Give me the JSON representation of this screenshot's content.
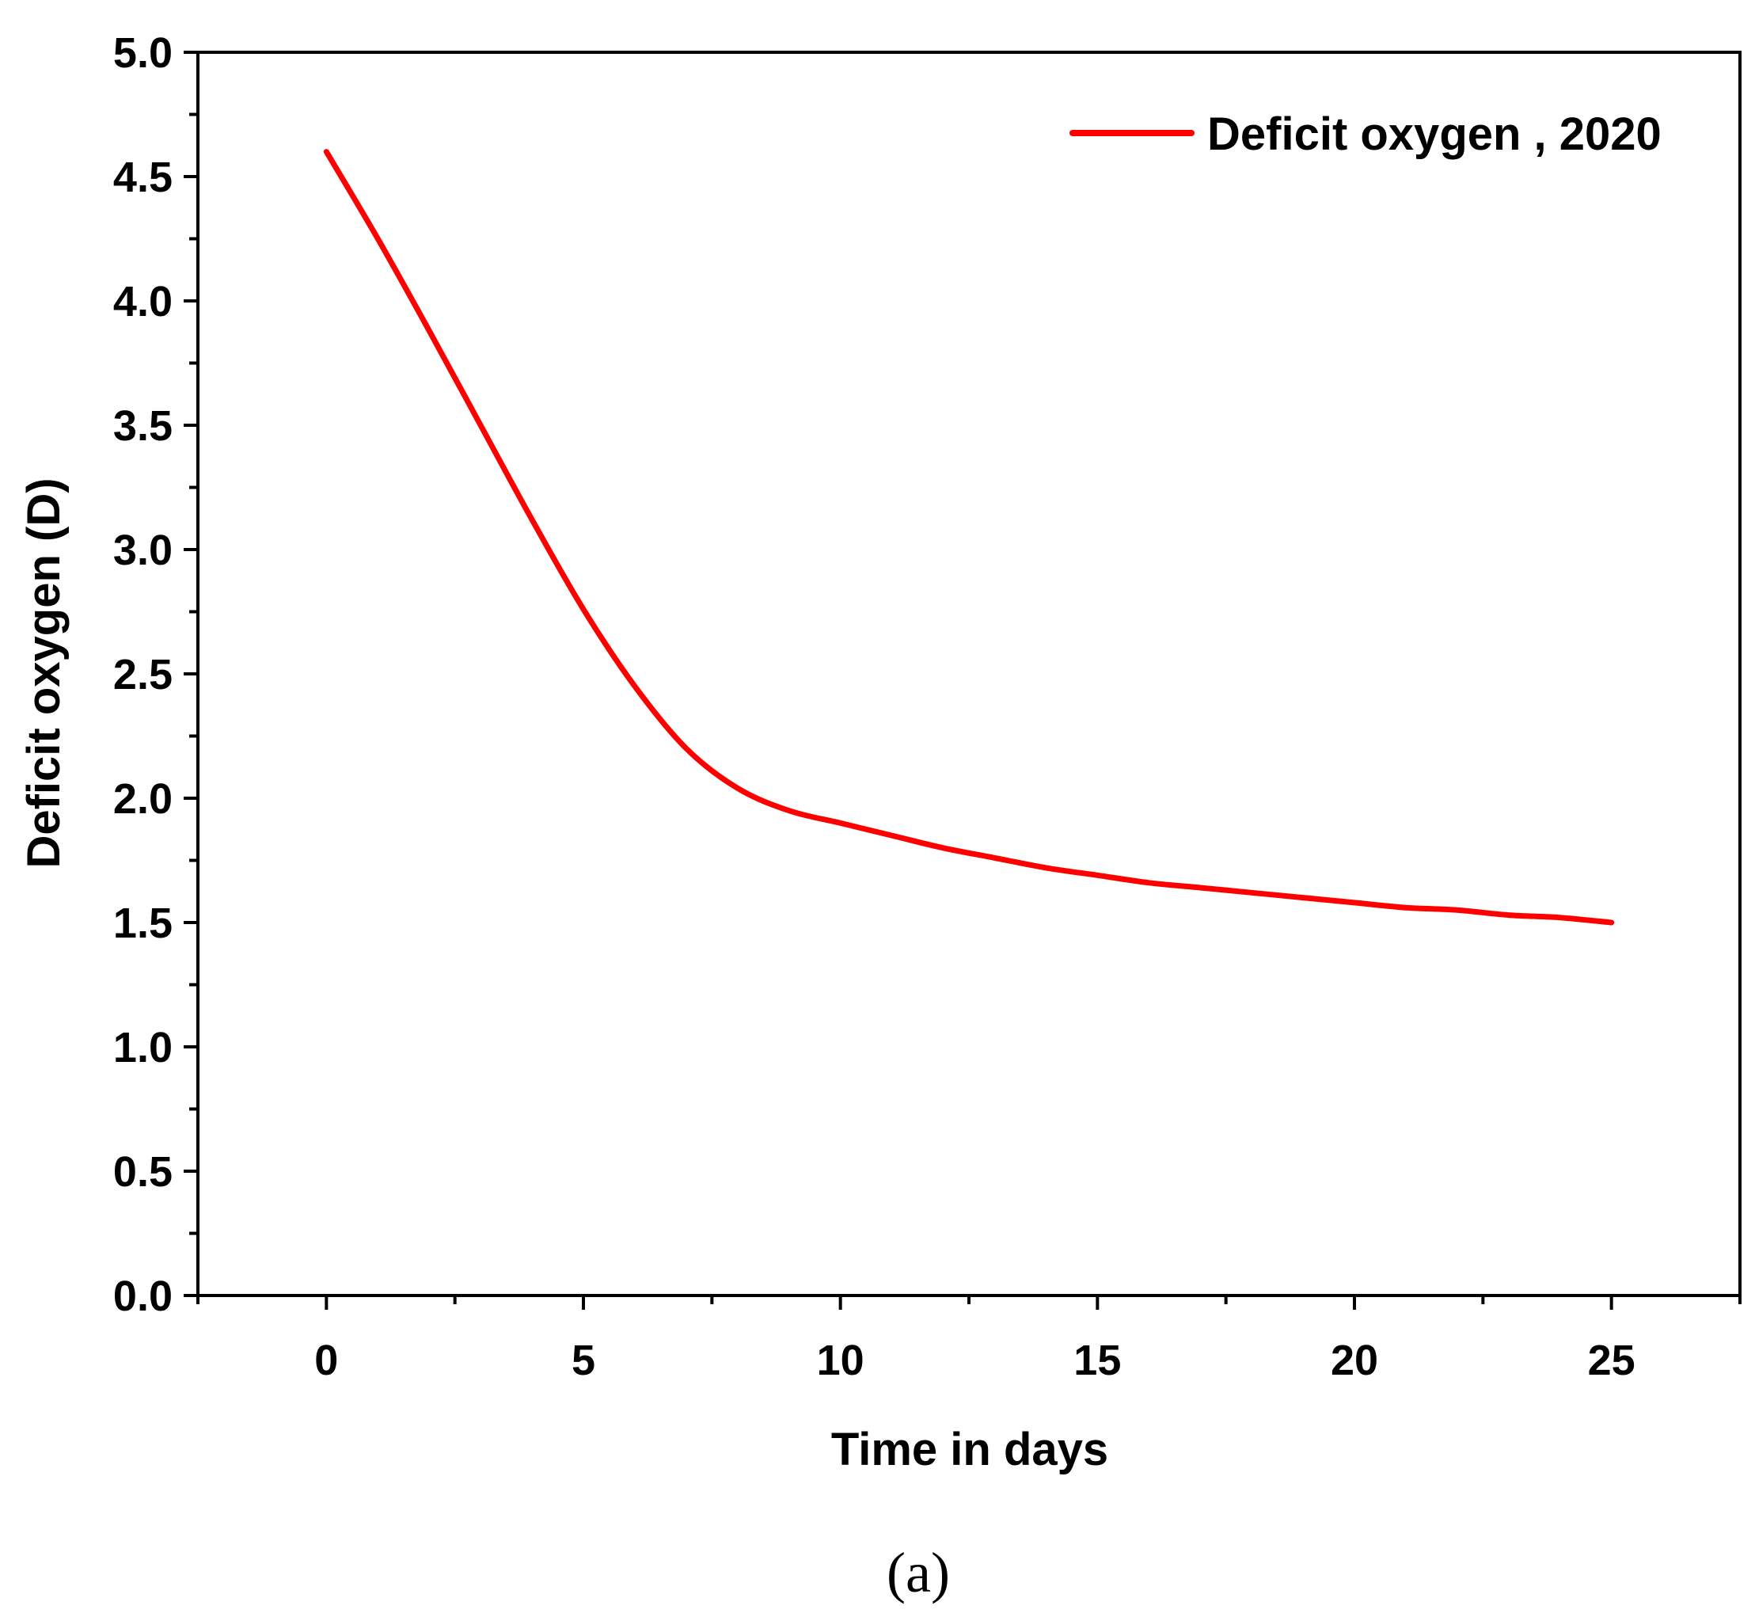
{
  "chart_data": {
    "type": "line",
    "title": "",
    "xlabel": "Time in days",
    "ylabel": "Deficit oxygen (D)",
    "xlim": [
      -2.5,
      27.5
    ],
    "ylim": [
      0.0,
      5.0
    ],
    "x_major_ticks": [
      0,
      5,
      10,
      15,
      20,
      25
    ],
    "x_tick_labels": [
      "0",
      "5",
      "10",
      "15",
      "20",
      "25"
    ],
    "x_minor_ticks": [
      -2.5,
      2.5,
      7.5,
      12.5,
      17.5,
      22.5,
      27.5
    ],
    "y_major_ticks": [
      0.0,
      0.5,
      1.0,
      1.5,
      2.0,
      2.5,
      3.0,
      3.5,
      4.0,
      4.5,
      5.0
    ],
    "y_tick_labels": [
      "0.0",
      "0.5",
      "1.0",
      "1.5",
      "2.0",
      "2.5",
      "3.0",
      "3.5",
      "4.0",
      "4.5",
      "5.0"
    ],
    "legend_position": "top-right",
    "grid": false,
    "series": [
      {
        "name": "Deficit oxygen",
        "legend_label": "Deficit oxygen , 2020",
        "color": "#ff0000",
        "x": [
          0,
          1,
          2,
          3,
          4,
          5,
          6,
          7,
          8,
          9,
          10,
          11,
          12,
          13,
          14,
          15,
          16,
          17,
          18,
          19,
          20,
          21,
          22,
          23,
          24,
          25
        ],
        "y": [
          4.6,
          4.25,
          3.88,
          3.5,
          3.12,
          2.76,
          2.45,
          2.2,
          2.04,
          1.95,
          1.9,
          1.85,
          1.8,
          1.76,
          1.72,
          1.69,
          1.66,
          1.64,
          1.62,
          1.6,
          1.58,
          1.56,
          1.55,
          1.53,
          1.52,
          1.5
        ]
      }
    ]
  },
  "caption": "(a)"
}
